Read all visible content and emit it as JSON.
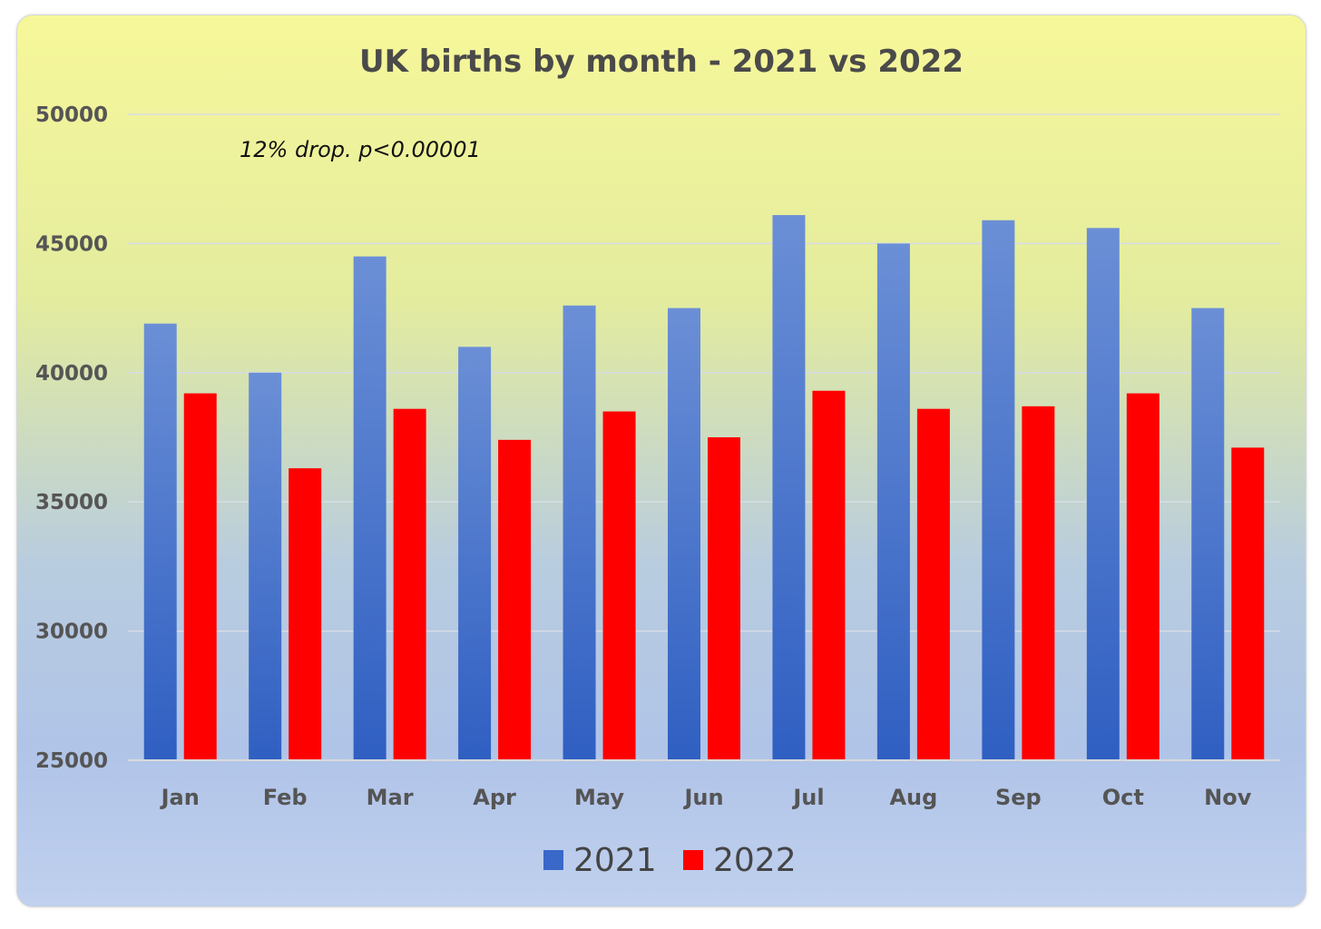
{
  "chart_data": {
    "type": "bar",
    "title": "UK births by month - 2021 vs 2022",
    "annotation": "12% drop. p<0.00001",
    "xlabel": "",
    "ylabel": "",
    "ylim": [
      25000,
      50000
    ],
    "yticks": [
      "25000",
      "30000",
      "35000",
      "40000",
      "45000",
      "50000"
    ],
    "categories": [
      "Jan",
      "Feb",
      "Mar",
      "Apr",
      "May",
      "Jun",
      "Jul",
      "Aug",
      "Sep",
      "Oct",
      "Nov"
    ],
    "series": [
      {
        "name": "2021",
        "color": "#3a68c8",
        "values": [
          41900,
          40000,
          44500,
          41000,
          42600,
          42500,
          46100,
          45000,
          45900,
          45600,
          42500
        ]
      },
      {
        "name": "2022",
        "color": "#ff0000",
        "values": [
          39200,
          36300,
          38600,
          37400,
          38500,
          37500,
          39300,
          38600,
          38700,
          39200,
          37100
        ]
      }
    ],
    "grid": true,
    "legend_position": "bottom"
  }
}
